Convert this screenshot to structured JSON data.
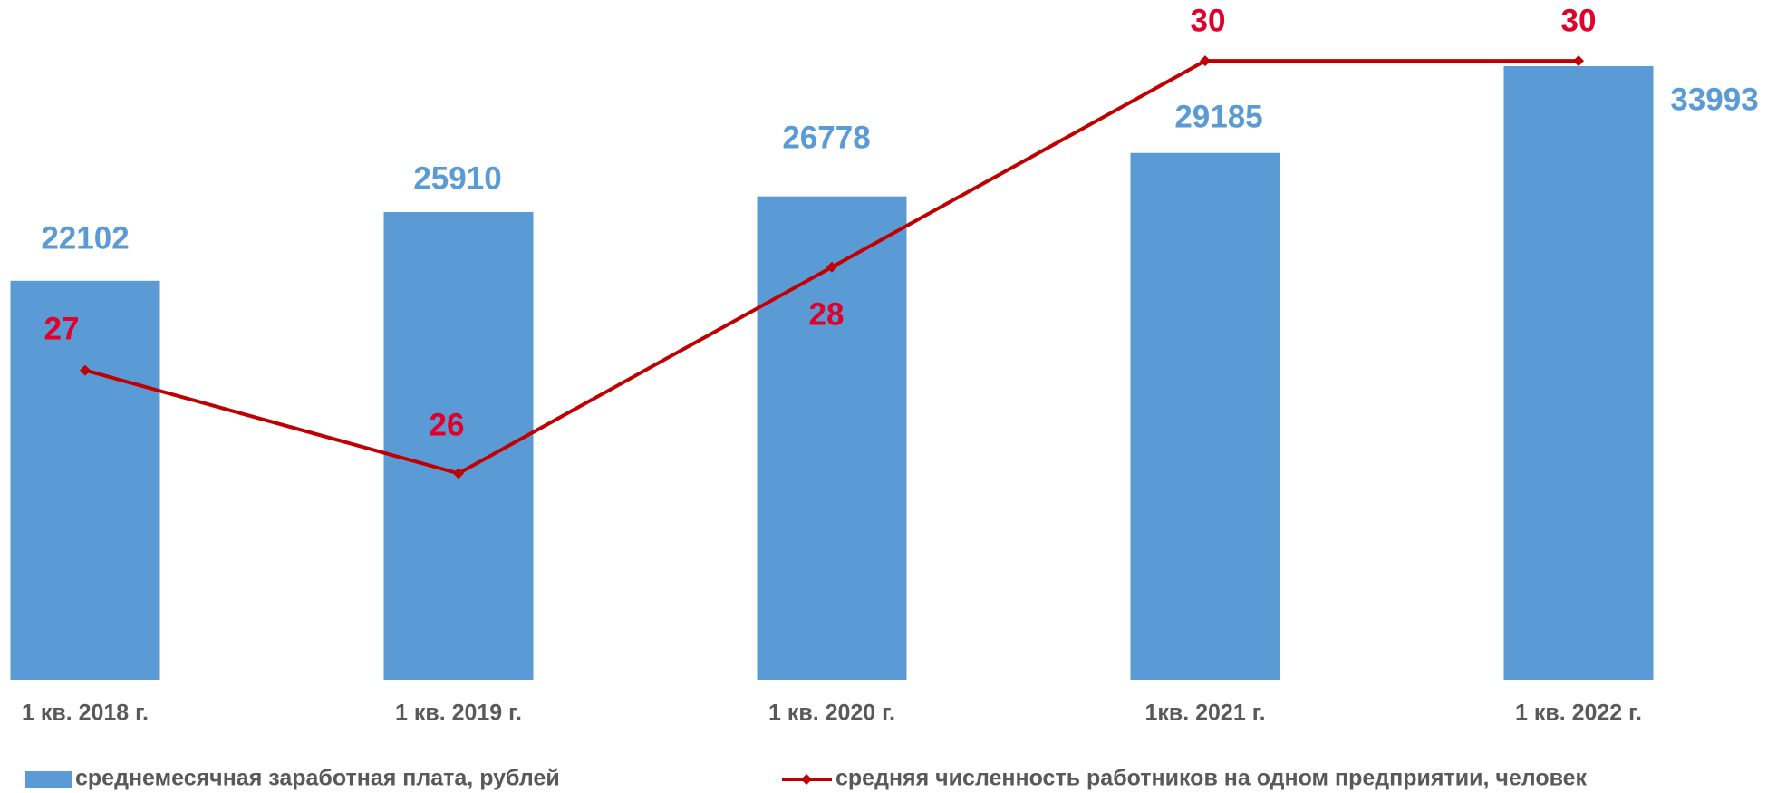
{
  "chart_data": {
    "type": "bar-line",
    "categories": [
      "1 кв. 2018 г.",
      "1 кв. 2019 г.",
      "1 кв. 2020 г.",
      "1кв. 2021 г.",
      "1 кв. 2022 г."
    ],
    "series": [
      {
        "name": "среднемесячная заработная плата, рублей",
        "type": "bar",
        "color": "#5b9bd5",
        "label_color": "#5b9bd5",
        "values": [
          22102,
          25910,
          26778,
          29185,
          33993
        ]
      },
      {
        "name": "средняя численность работников на одном предприятии, человек",
        "type": "line",
        "axis": "y2",
        "color": "#c00000",
        "label_color": "#e0002a",
        "values": [
          27,
          26,
          28,
          30,
          30
        ]
      }
    ],
    "ylim": [
      0,
      36000
    ],
    "y2lim": [
      24,
      30.3
    ],
    "grid": false
  }
}
